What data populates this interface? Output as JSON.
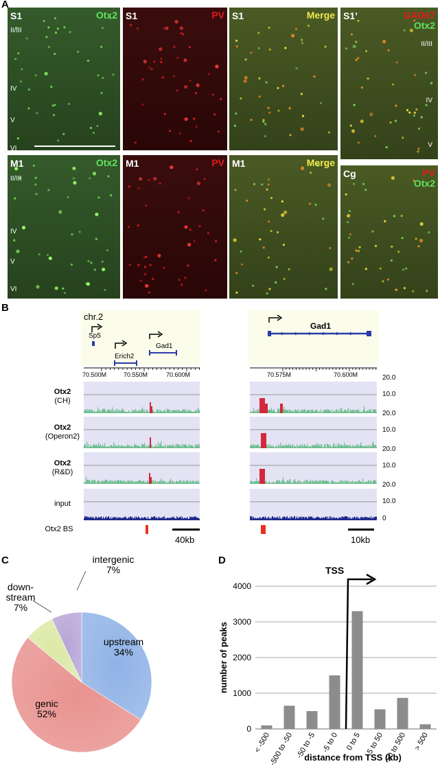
{
  "panelA": {
    "label": "A",
    "panels": [
      {
        "region": "S1",
        "marker": "Otx2",
        "marker_color": "#5fe35f",
        "tint": "green",
        "layers": [
          "II/III",
          "IV",
          "V",
          "VI"
        ],
        "scalebar": true
      },
      {
        "region": "S1",
        "marker": "PV",
        "marker_color": "#e21b1b",
        "tint": "red",
        "layers": []
      },
      {
        "region": "S1",
        "marker": "Merge",
        "marker_color": "#f2e84a",
        "tint": "merge",
        "layers": []
      },
      {
        "region": "S1’",
        "marker": "GAD67",
        "marker2": "Otx2",
        "marker_color": "#e21b1b",
        "marker2_color": "#5fe35f",
        "tint": "merge",
        "layers": [
          "II/III",
          "IV",
          "V"
        ]
      },
      {
        "region": "M1",
        "marker": "Otx2",
        "marker_color": "#5fe35f",
        "tint": "green",
        "layers": [
          "II/III",
          "IV",
          "V",
          "VI"
        ]
      },
      {
        "region": "M1",
        "marker": "PV",
        "marker_color": "#e21b1b",
        "tint": "red",
        "layers": []
      },
      {
        "region": "M1",
        "marker": "Merge",
        "marker_color": "#f2e84a",
        "tint": "merge",
        "layers": []
      },
      {
        "region": "Cg",
        "marker": "PV",
        "marker2": "Otx2",
        "marker_color": "#e21b1b",
        "marker2_color": "#5fe35f",
        "tint": "merge",
        "layers": []
      }
    ]
  },
  "panelB": {
    "label": "B",
    "chrom": "chr.2",
    "left_genes": [
      "Sp5",
      "Erich2",
      "Gad1"
    ],
    "right_gene": "Gad1",
    "left_ticks": [
      "70.500M",
      "70.550M",
      "70.600M"
    ],
    "right_ticks": [
      "70.575M",
      "70.600M"
    ],
    "tracks": [
      {
        "name": "Otx2",
        "sub": "(CH)",
        "color": "#6fbe90"
      },
      {
        "name": "Otx2",
        "sub": "(Operon2)",
        "color": "#6fbe90"
      },
      {
        "name": "Otx2",
        "sub": "(R&D)",
        "color": "#6fbe90"
      },
      {
        "name": "",
        "sub": "input",
        "color": "#1f2a8c"
      }
    ],
    "scale_values": [
      "20.0",
      "10.0",
      "20.0",
      "10.0",
      "20.0",
      "10.0",
      "20.0",
      "10.0",
      "0"
    ],
    "bs_label": "Otx2 BS",
    "left_scalebar": "40kb",
    "right_scalebar": "10kb",
    "peak_color": "#d3283b",
    "bs_color": "#e8321e"
  },
  "panelC": {
    "label": "C",
    "chart_data": {
      "type": "pie",
      "labels": [
        "upstream",
        "genic",
        "down-stream",
        "intergenic"
      ],
      "values": [
        34,
        52,
        7,
        7
      ],
      "display_labels": [
        [
          "upstream",
          "34%"
        ],
        [
          "genic",
          "52%"
        ],
        [
          "down-",
          "stream",
          "7%"
        ],
        [
          "intergenic",
          "7%"
        ]
      ],
      "colors": [
        "#8fb2e6",
        "#e8928f",
        "#dce9a7",
        "#b7a5d6"
      ]
    }
  },
  "panelD": {
    "label": "D",
    "chart_data": {
      "type": "bar",
      "categories": [
        "< -500",
        "-500 to -50",
        "-50 to -5",
        "-5 to 0",
        "0 to 5",
        "5 to 50",
        "50 to 500",
        "> 500"
      ],
      "values": [
        100,
        650,
        500,
        1500,
        3300,
        550,
        870,
        130
      ],
      "ylim": [
        0,
        4000
      ],
      "yticks": [
        "0",
        "1000",
        "2000",
        "3000",
        "4000"
      ],
      "ylabel": "number of peaks",
      "xlabel": "distance from TSS (kb)",
      "annotation": "TSS",
      "bar_color": "#8c8c8c",
      "grid": true
    }
  }
}
